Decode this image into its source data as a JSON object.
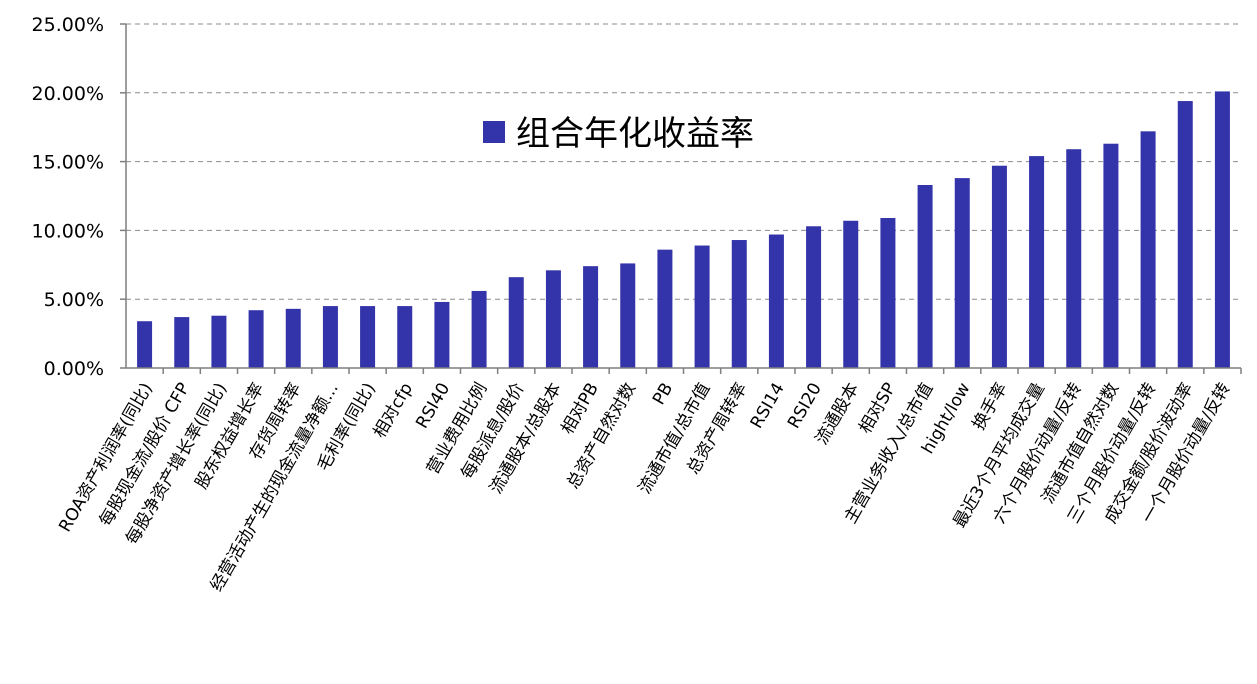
{
  "chart_data": {
    "type": "bar",
    "title": "",
    "xlabel": "",
    "ylabel": "",
    "ylim": [
      0,
      25
    ],
    "y_tick_values": [
      0,
      5,
      10,
      15,
      20,
      25
    ],
    "y_tick_labels": [
      "0.00%",
      "5.00%",
      "10.00%",
      "15.00%",
      "20.00%",
      "25.00%"
    ],
    "grid": true,
    "legend_position": "top-center",
    "series": [
      {
        "name": "组合年化收益率",
        "color": "#3333aa",
        "values": [
          3.4,
          3.7,
          3.8,
          4.2,
          4.3,
          4.5,
          4.5,
          4.5,
          4.8,
          5.6,
          6.6,
          7.1,
          7.4,
          7.6,
          8.6,
          8.9,
          9.3,
          9.7,
          10.3,
          10.7,
          10.9,
          13.3,
          13.8,
          14.7,
          15.4,
          15.9,
          16.3,
          17.2,
          19.4,
          20.1
        ]
      }
    ],
    "categories": [
      "ROA资产利润率(同比)",
      "每股现金流/股价 CFP",
      "每股净资产增长率(同比)",
      "股东权益增长率",
      "存货周转率",
      "经营活动产生的现金流量净额...",
      "毛利率(同比)",
      "相对cfp",
      "RSI40",
      "营业费用比例",
      "每股派息/股价",
      "流通股本/总股本",
      "相对PB",
      "总资产自然对数",
      "PB",
      "流通市值/总市值",
      "总资产周转率",
      "RSI14",
      "RSI20",
      "流通股本",
      "相对SP",
      "主营业务收入/总市值",
      "hight/low",
      "换手率",
      "最近3个月平均成交量",
      "六个月股价动量/反转",
      "流通市值自然对数",
      "三个月股价动量/反转",
      "成交金额/股价波动率",
      "一个月股价动量/反转"
    ]
  }
}
